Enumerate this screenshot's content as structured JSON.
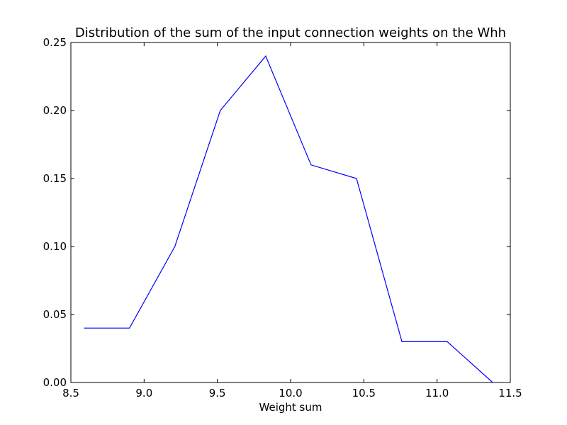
{
  "chart_data": {
    "type": "line",
    "title": "Distribution of the sum of the input connection weights on the Whh",
    "xlabel": "Weight sum",
    "ylabel": "",
    "xlim": [
      8.5,
      11.5
    ],
    "ylim": [
      0.0,
      0.25
    ],
    "xticks": [
      "8.5",
      "9.0",
      "9.5",
      "10.0",
      "10.5",
      "11.0",
      "11.5"
    ],
    "yticks": [
      "0.00",
      "0.05",
      "0.10",
      "0.15",
      "0.20",
      "0.25"
    ],
    "grid": false,
    "series": [
      {
        "color": "#0000ff",
        "x": [
          8.59,
          8.9,
          9.21,
          9.52,
          9.83,
          10.14,
          10.45,
          10.76,
          11.07,
          11.38
        ],
        "y": [
          0.04,
          0.04,
          0.1,
          0.2,
          0.24,
          0.16,
          0.15,
          0.03,
          0.03,
          0.0
        ]
      }
    ]
  }
}
